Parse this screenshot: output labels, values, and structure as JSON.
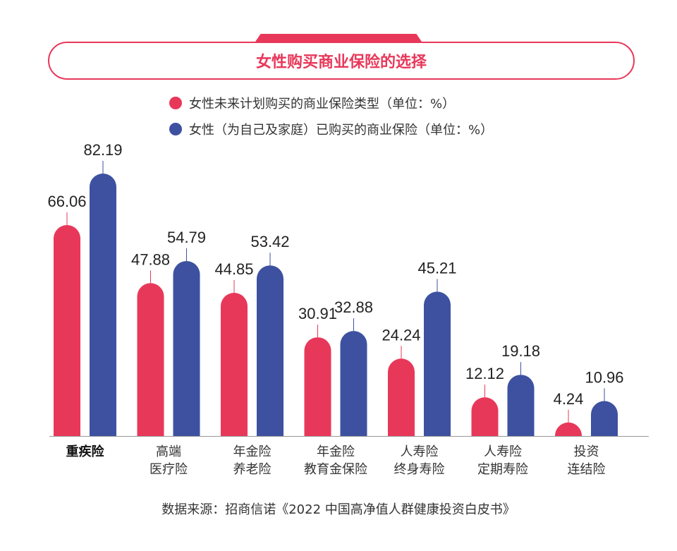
{
  "chart_data": {
    "type": "bar",
    "title": "女性购买商业保险的选择",
    "categories": [
      "重疾险",
      "高端\n医疗险",
      "年金险\n养老险",
      "年金险\n教育金保险",
      "人寿险\n终身寿险",
      "人寿险\n定期寿险",
      "投资\n连结险"
    ],
    "series": [
      {
        "name": "女性未来计划购买的商业保险类型（单位：%）",
        "color": "#e8385a",
        "values": [
          66.06,
          47.88,
          44.85,
          30.91,
          24.24,
          12.12,
          4.24
        ]
      },
      {
        "name": "女性（为自己及家庭）已购买的商业保险（单位：%）",
        "color": "#3d51a0",
        "values": [
          82.19,
          54.79,
          53.42,
          32.88,
          45.21,
          19.18,
          10.96
        ]
      }
    ],
    "ylim": [
      0,
      90
    ],
    "grid": false,
    "legend": "top",
    "source": "数据来源：招商信诺《2022 中国高净值人群健康投资白皮书》"
  }
}
